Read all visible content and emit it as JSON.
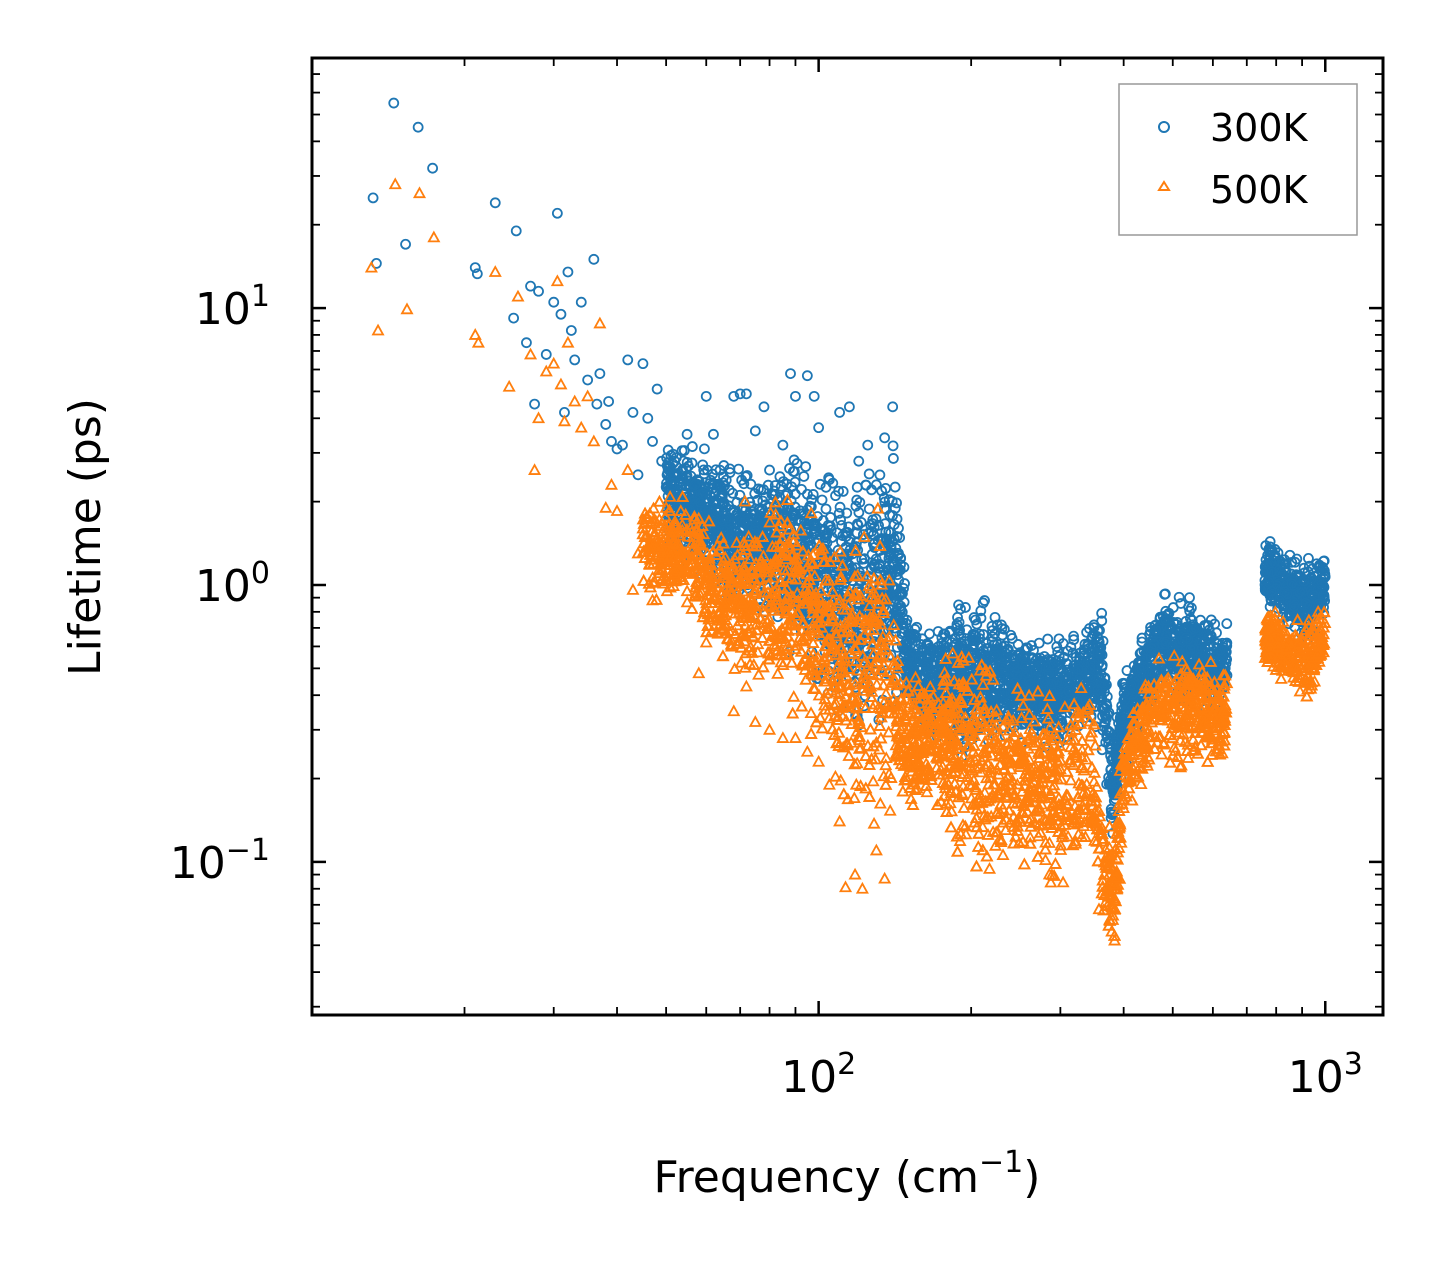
{
  "chart_data": {
    "type": "scatter",
    "title": "",
    "xlabel": "Frequency (cm⁻¹)",
    "xlabel_main": "Frequency (cm",
    "xlabel_sup": "−1",
    "xlabel_close": ")",
    "ylabel": "Lifetime (ps)",
    "xscale": "log",
    "yscale": "log",
    "xlim": [
      10,
      1300
    ],
    "ylim": [
      0.028,
      80
    ],
    "xticks": [
      {
        "value": 100,
        "base": "10",
        "exp": "2"
      },
      {
        "value": 1000,
        "base": "10",
        "exp": "3"
      }
    ],
    "yticks": [
      {
        "value": 0.1,
        "base": "10",
        "exp": "−1"
      },
      {
        "value": 1,
        "base": "10",
        "exp": "0"
      },
      {
        "value": 10,
        "base": "10",
        "exp": "1"
      }
    ],
    "legend": {
      "position": "top-right"
    },
    "series": [
      {
        "name": "300K",
        "marker": "circle",
        "color": "#1f77b4",
        "points": [
          [
            13.2,
            25
          ],
          [
            13.4,
            14.5
          ],
          [
            14.5,
            55
          ],
          [
            15.3,
            17
          ],
          [
            16.2,
            45
          ],
          [
            17.3,
            32
          ],
          [
            21,
            14
          ],
          [
            21.2,
            13.3
          ],
          [
            23,
            24
          ],
          [
            25,
            9.2
          ],
          [
            25.3,
            19
          ],
          [
            26.5,
            7.5
          ],
          [
            27,
            12
          ],
          [
            27.5,
            4.5
          ],
          [
            28,
            11.5
          ],
          [
            29,
            6.8
          ],
          [
            30,
            10.5
          ],
          [
            30.5,
            22
          ],
          [
            31,
            9.5
          ],
          [
            31.5,
            4.2
          ],
          [
            32,
            13.5
          ],
          [
            32.5,
            8.3
          ],
          [
            33,
            6.5
          ],
          [
            34,
            10.5
          ],
          [
            35,
            5.5
          ],
          [
            36,
            15
          ],
          [
            36.5,
            4.5
          ],
          [
            37,
            5.8
          ],
          [
            38,
            3.8
          ],
          [
            38.5,
            4.6
          ],
          [
            39,
            3.3
          ],
          [
            40,
            3.1
          ],
          [
            41,
            3.2
          ],
          [
            42,
            6.5
          ],
          [
            43,
            4.2
          ],
          [
            44,
            2.5
          ],
          [
            45,
            6.3
          ],
          [
            46,
            4
          ],
          [
            47,
            3.3
          ],
          [
            48,
            5.1
          ],
          [
            49,
            2.8
          ],
          [
            52,
            2.8
          ],
          [
            55,
            3.5
          ],
          [
            57,
            2.3
          ],
          [
            60,
            4.8
          ],
          [
            62,
            3.5
          ],
          [
            65,
            2.7
          ],
          [
            68,
            4.8
          ],
          [
            70,
            4.9
          ],
          [
            72,
            4.9
          ],
          [
            75,
            3.6
          ],
          [
            78,
            4.4
          ],
          [
            80,
            2.6
          ],
          [
            85,
            3.2
          ],
          [
            88,
            5.8
          ],
          [
            90,
            4.8
          ],
          [
            95,
            5.7
          ],
          [
            98,
            4.8
          ],
          [
            100,
            3.7
          ],
          [
            105,
            2.4
          ],
          [
            110,
            4.2
          ],
          [
            115,
            4.4
          ],
          [
            120,
            2.8
          ],
          [
            125,
            3.2
          ],
          [
            130,
            2.3
          ],
          [
            135,
            3.4
          ],
          [
            140,
            4.4
          ]
        ]
      },
      {
        "name": "500K",
        "marker": "triangle",
        "color": "#ff7f0e",
        "points": [
          [
            13.1,
            14
          ],
          [
            13.5,
            8.3
          ],
          [
            14.6,
            28
          ],
          [
            15.4,
            9.9
          ],
          [
            16.3,
            26
          ],
          [
            17.4,
            18
          ],
          [
            21,
            8
          ],
          [
            21.3,
            7.5
          ],
          [
            23,
            13.5
          ],
          [
            24.5,
            5.2
          ],
          [
            25.5,
            11
          ],
          [
            27,
            6.8
          ],
          [
            27.5,
            2.6
          ],
          [
            28,
            4
          ],
          [
            29,
            5.9
          ],
          [
            30,
            6.3
          ],
          [
            30.5,
            12.5
          ],
          [
            31,
            5.3
          ],
          [
            31.5,
            3.9
          ],
          [
            32,
            7.5
          ],
          [
            33,
            4.6
          ],
          [
            34,
            3.7
          ],
          [
            35,
            4.8
          ],
          [
            36,
            3.3
          ],
          [
            37,
            8.8
          ],
          [
            38,
            1.9
          ],
          [
            39,
            2.3
          ],
          [
            40,
            1.85
          ],
          [
            42,
            2.6
          ],
          [
            43,
            0.96
          ],
          [
            44,
            1.3
          ],
          [
            45,
            1.6
          ],
          [
            47,
            0.88
          ],
          [
            50,
            1.9
          ],
          [
            52,
            1.1
          ],
          [
            55,
            0.95
          ],
          [
            58,
            0.48
          ],
          [
            60,
            0.62
          ],
          [
            64,
            0.8
          ],
          [
            68,
            0.35
          ],
          [
            72,
            0.43
          ],
          [
            75,
            0.32
          ],
          [
            80,
            0.3
          ],
          [
            85,
            0.28
          ],
          [
            90,
            0.28
          ],
          [
            95,
            0.25
          ],
          [
            100,
            0.23
          ],
          [
            105,
            0.19
          ],
          [
            110,
            0.14
          ],
          [
            113,
            0.081
          ],
          [
            118,
            0.09
          ],
          [
            122,
            0.08
          ],
          [
            130,
            0.11
          ],
          [
            135,
            0.087
          ]
        ]
      }
    ]
  }
}
